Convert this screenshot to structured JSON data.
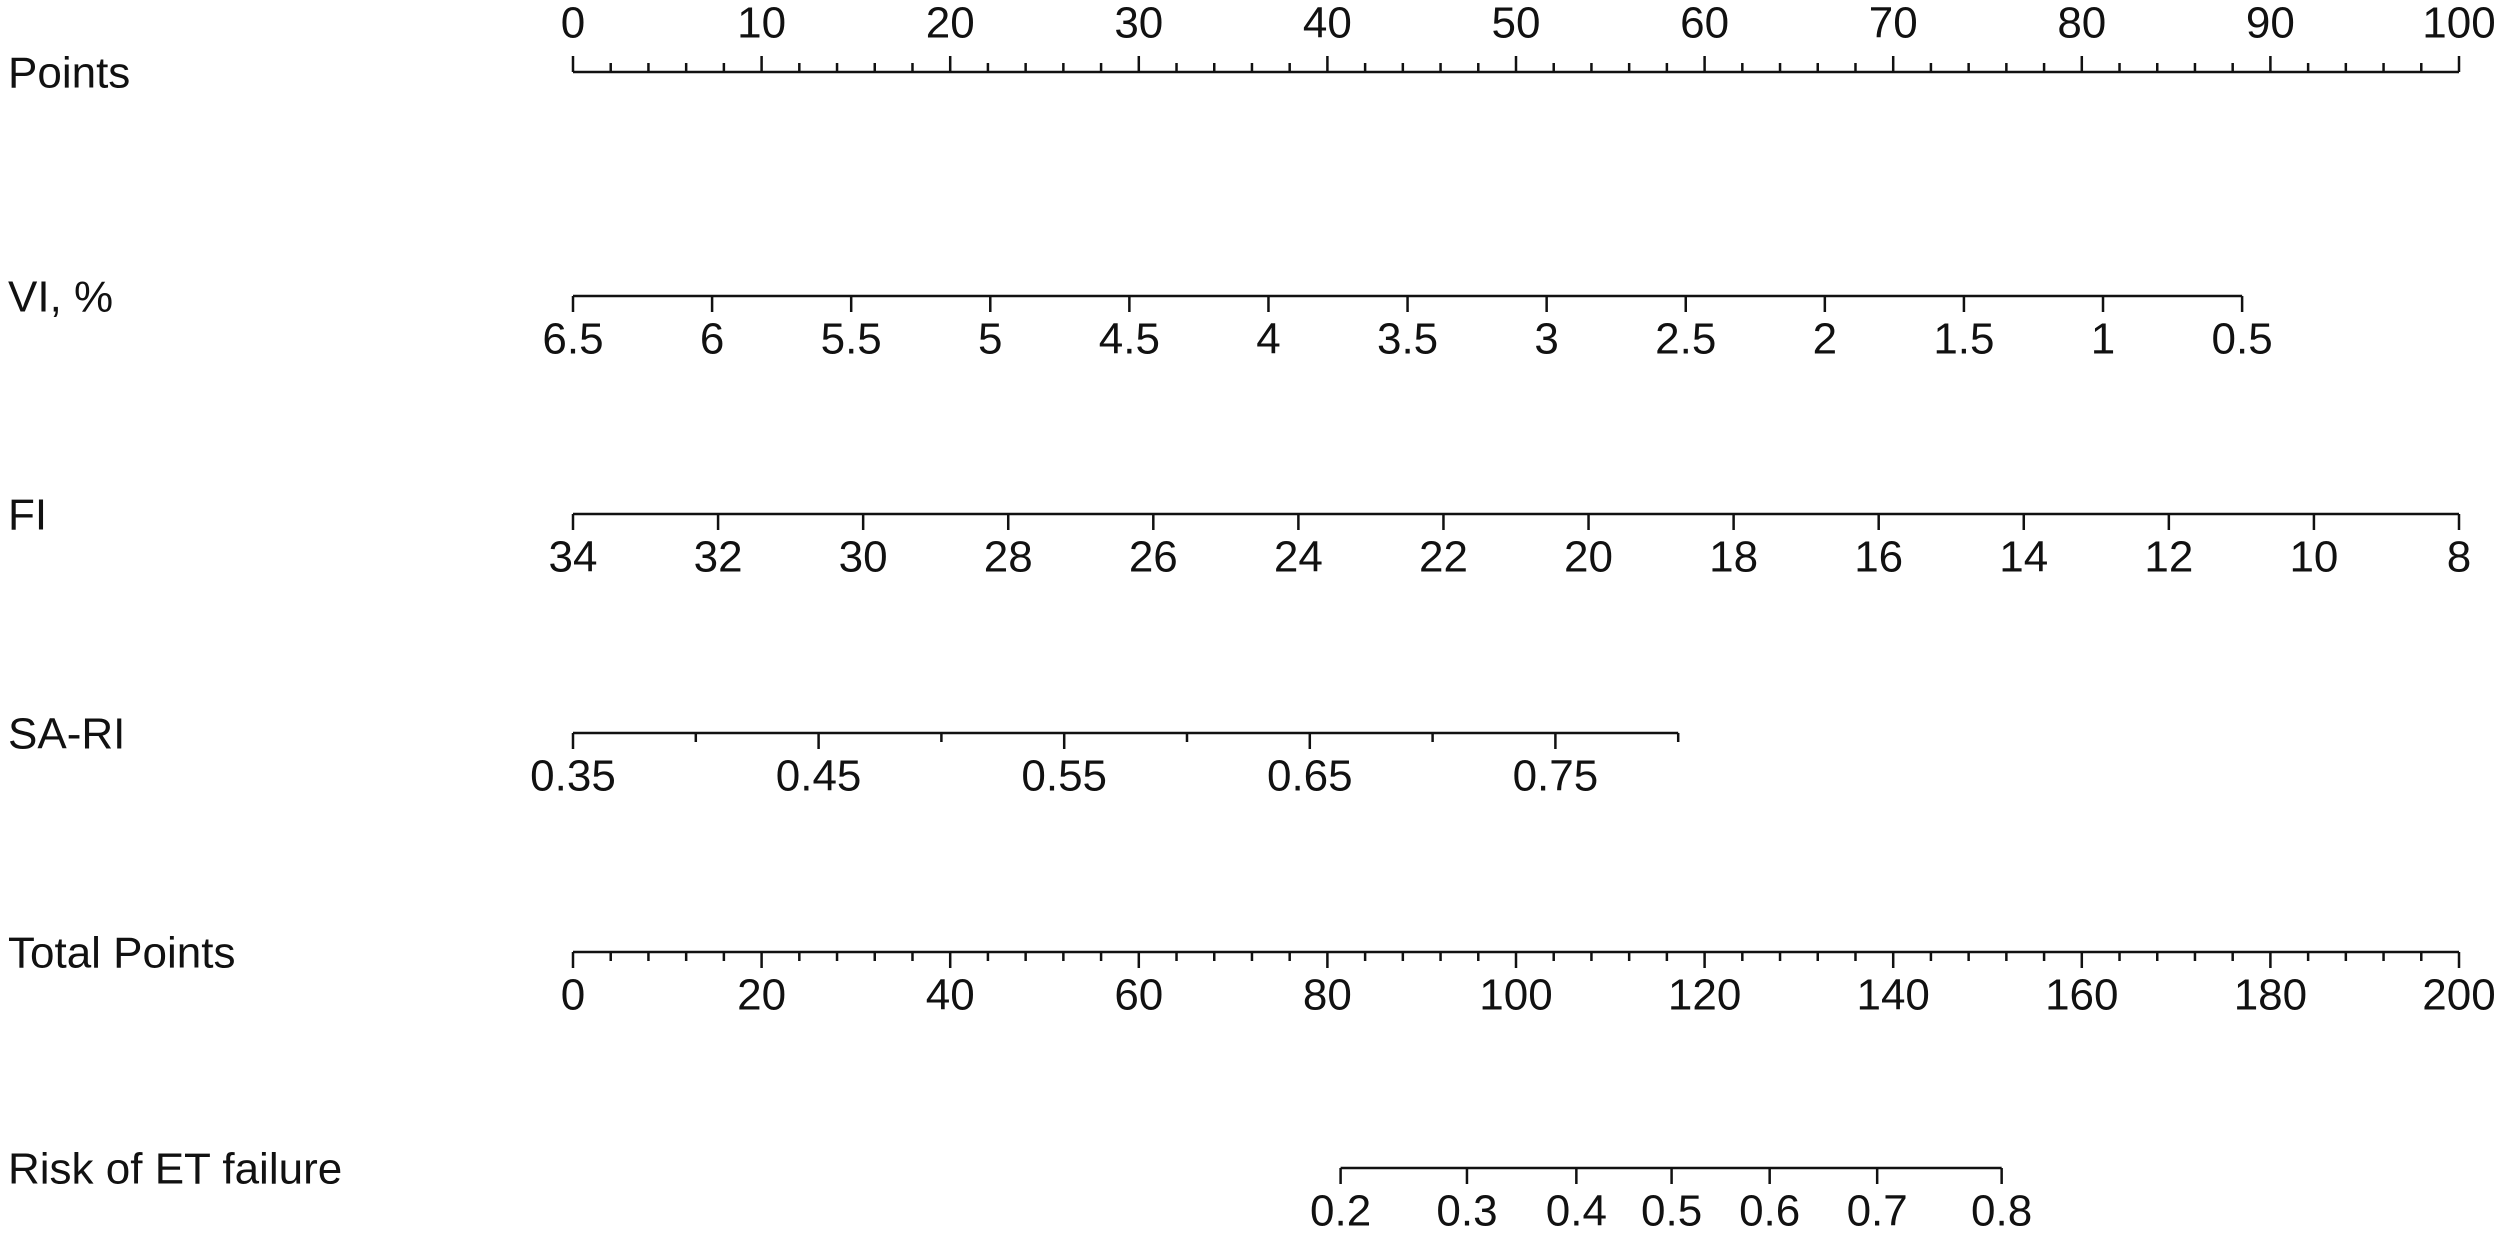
{
  "chart_data": {
    "type": "nomogram",
    "axes": [
      {
        "name": "Points",
        "scale": "points",
        "lim": [
          0,
          100
        ],
        "at": [
          0,
          100
        ],
        "ticks": [
          0,
          10,
          20,
          30,
          40,
          50,
          60,
          70,
          80,
          90,
          100
        ],
        "minor_tick_step": 2,
        "labels_above": true
      },
      {
        "name": "VI, %",
        "scale": "points",
        "lim": [
          6.5,
          0.5
        ],
        "at": [
          0,
          88.5
        ],
        "ticks": [
          6.5,
          6,
          5.5,
          5,
          4.5,
          4,
          3.5,
          3,
          2.5,
          2,
          1.5,
          1,
          0.5
        ]
      },
      {
        "name": "FI",
        "scale": "points",
        "lim": [
          34,
          8
        ],
        "at": [
          0,
          100
        ],
        "ticks": [
          34,
          32,
          30,
          28,
          26,
          24,
          22,
          20,
          18,
          16,
          14,
          12,
          10,
          8
        ]
      },
      {
        "name": "SA-RI",
        "scale": "points",
        "lim": [
          0.35,
          0.8
        ],
        "at": [
          0,
          58.6
        ],
        "ticks": [
          0.35,
          0.45,
          0.55,
          0.65,
          0.75
        ],
        "minor_tick_step": 0.05
      },
      {
        "name": "Total Points",
        "scale": "total",
        "lim": [
          0,
          200
        ],
        "at": [
          0,
          200
        ],
        "ticks": [
          0,
          20,
          40,
          60,
          80,
          100,
          120,
          140,
          160,
          180,
          200
        ],
        "minor_tick_step": 4
      },
      {
        "name": "Risk of ET failure",
        "scale": "total",
        "ticks": [
          0.2,
          0.3,
          0.4,
          0.5,
          0.6,
          0.7,
          0.8
        ],
        "positions": [
          81.4,
          94.8,
          106.4,
          116.5,
          126.9,
          138.3,
          151.5
        ]
      }
    ]
  }
}
